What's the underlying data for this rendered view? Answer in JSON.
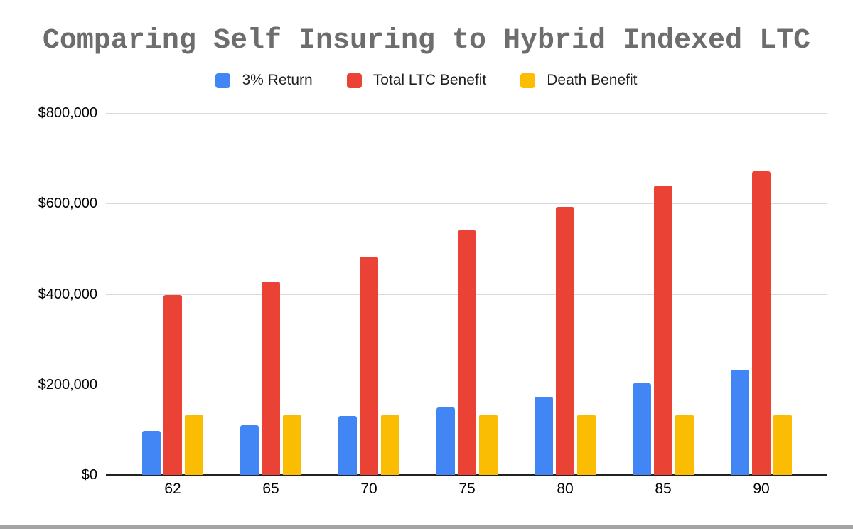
{
  "chart": {
    "title": "Comparing Self Insuring to Hybrid Indexed LTC"
  },
  "chart_data": {
    "type": "bar",
    "title": "Comparing Self Insuring to Hybrid Indexed LTC",
    "categories": [
      "62",
      "65",
      "70",
      "75",
      "80",
      "85",
      "90"
    ],
    "series": [
      {
        "name": "3% Return",
        "color": "#4285F4",
        "values": [
          97000,
          110000,
          130000,
          149000,
          173000,
          203000,
          233000
        ]
      },
      {
        "name": "Total LTC Benefit",
        "color": "#EA4335",
        "values": [
          397000,
          427000,
          483000,
          540000,
          593000,
          639000,
          671000
        ]
      },
      {
        "name": "Death Benefit",
        "color": "#FBBC04",
        "values": [
          134000,
          134000,
          134000,
          134000,
          134000,
          134000,
          134000
        ]
      }
    ],
    "xlabel": "",
    "ylabel": "",
    "ylim": [
      0,
      800000
    ],
    "y_ticks": [
      {
        "value": 800000,
        "label": "$800,000"
      },
      {
        "value": 600000,
        "label": "$600,000"
      },
      {
        "value": 400000,
        "label": "$400,000"
      },
      {
        "value": 200000,
        "label": "$200,000"
      },
      {
        "value": 0,
        "label": "$0"
      }
    ],
    "grid": true,
    "legend_position": "top",
    "colors": {
      "title_text": "#6d6d6d",
      "axis_text": "#000000",
      "gridline": "#d9d9d9",
      "axis_line": "#212121",
      "background": "#ffffff",
      "bottom_edge": "#a3a3a3"
    }
  }
}
